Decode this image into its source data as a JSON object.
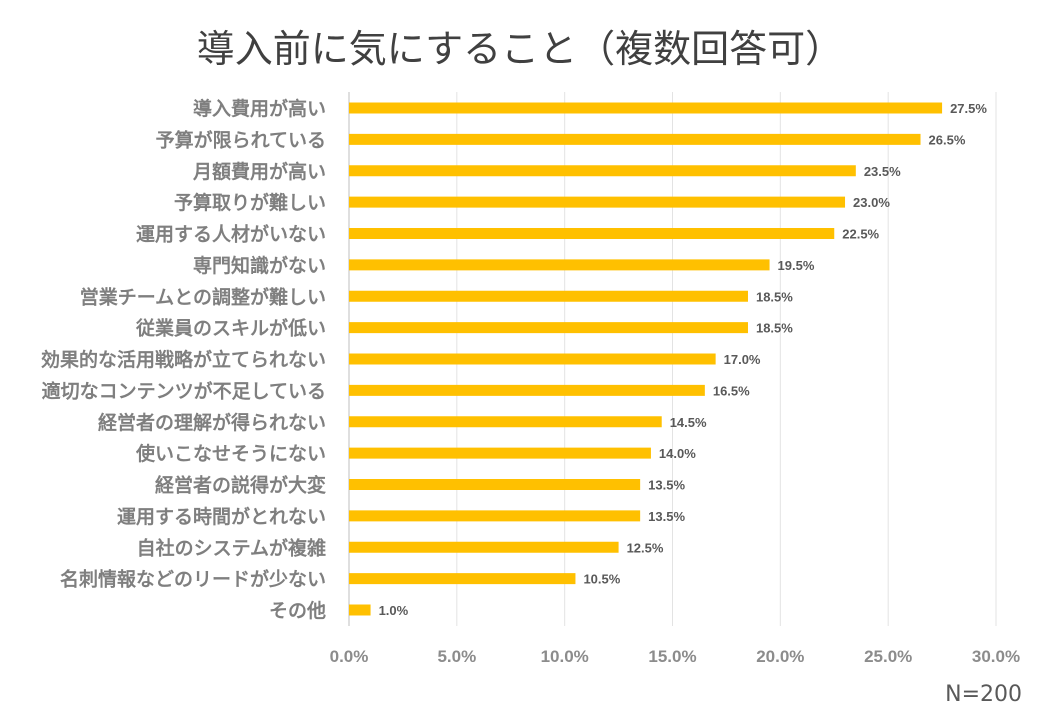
{
  "chart_data": {
    "type": "bar",
    "orientation": "horizontal",
    "title": "導入前に気にすること（複数回答可）",
    "categories": [
      "導入費用が高い",
      "予算が限られている",
      "月額費用が高い",
      "予算取りが難しい",
      "運用する人材がいない",
      "専門知識がない",
      "営業チームとの調整が難しい",
      "従業員のスキルが低い",
      "効果的な活用戦略が立てられない",
      "適切なコンテンツが不足している",
      "経営者の理解が得られない",
      "使いこなせそうにない",
      "経営者の説得が大変",
      "運用する時間がとれない",
      "自社のシステムが複雑",
      "名刺情報などのリードが少ない",
      "その他"
    ],
    "values": [
      27.5,
      26.5,
      23.5,
      23.0,
      22.5,
      19.5,
      18.5,
      18.5,
      17.0,
      16.5,
      14.5,
      14.0,
      13.5,
      13.5,
      12.5,
      10.5,
      1.0
    ],
    "data_labels": [
      "27.5%",
      "26.5%",
      "23.5%",
      "23.0%",
      "22.5%",
      "19.5%",
      "18.5%",
      "18.5%",
      "17.0%",
      "16.5%",
      "14.5%",
      "14.0%",
      "13.5%",
      "13.5%",
      "12.5%",
      "10.5%",
      "1.0%"
    ],
    "xlim": [
      0,
      30
    ],
    "x_ticks": [
      0,
      5,
      10,
      15,
      20,
      25,
      30
    ],
    "x_tick_labels": [
      "0.0%",
      "5.0%",
      "10.0%",
      "15.0%",
      "20.0%",
      "25.0%",
      "30.0%"
    ],
    "grid": true,
    "bar_color": "#FFC000",
    "note": "N=200"
  }
}
